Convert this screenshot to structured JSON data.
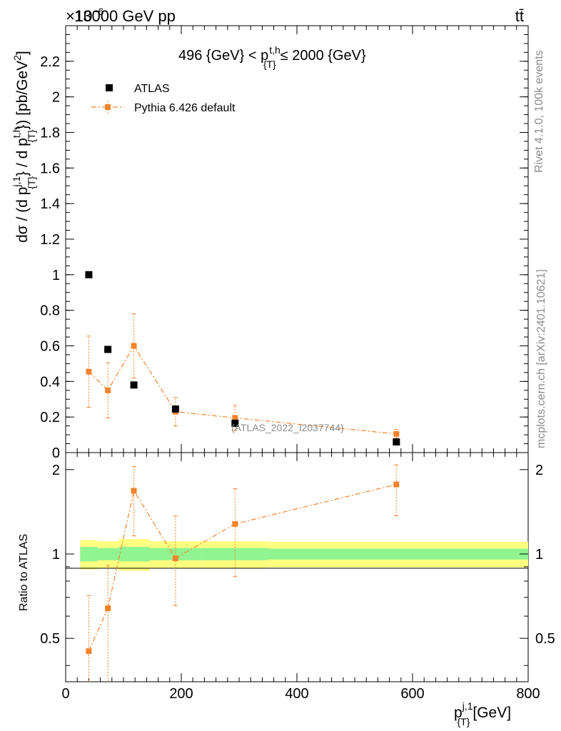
{
  "header": {
    "energy_label": "13000 GeV pp",
    "exponent_label": "×10",
    "exponent_power": "−6",
    "process_label": "tt̄"
  },
  "side_labels": {
    "rivet": "Rivet 4.1.0,  100k events",
    "mcplots": "mcplots.cern.ch [arXiv:2401.10621]"
  },
  "chart_data": {
    "type": "scatter",
    "title": "496 {GeV} < p_{T}^{t,h} ≤ 2000 {GeV}",
    "title_parts": {
      "left": "496 {GeV} < p",
      "sup": "t,h",
      "sub": "{T}",
      "right": "≤ 2000 {GeV}"
    },
    "analysis_label": "(ATLAS_2022_I2037744)",
    "xlabel": "p_{T}^{j,1} [GeV]",
    "xlabel_parts": {
      "main": "p",
      "sup": "j,1",
      "sub": "{T}",
      "unit": "[GeV]"
    },
    "ylabel": "dσ / (d p_{T}^{j,1} / d p_{T}^{t,h}) [pb/GeV^2]",
    "ylabel_parts": {
      "a": "dσ / (d p",
      "sup1": "j,1",
      "sub1": "{T}",
      "b": "} / d p",
      "sup2": "t,h",
      "sub2": "{T}",
      "c": "}) [pb/GeV",
      "sup3": "2",
      "d": "]"
    },
    "xlim": [
      0,
      800
    ],
    "ylim": [
      0,
      2.4
    ],
    "y_scale_note": "×10^-6",
    "xticks": [
      0,
      200,
      400,
      600,
      800
    ],
    "xtick_labels": [
      "0",
      "200",
      "400",
      "600",
      "800"
    ],
    "yticks": [
      0,
      0.2,
      0.4,
      0.6,
      0.8,
      1,
      1.2,
      1.4,
      1.6,
      1.8,
      2,
      2.2
    ],
    "ytick_labels": [
      "0",
      "0.2",
      "0.4",
      "0.6",
      "0.8",
      "1",
      "1.2",
      "1.4",
      "1.6",
      "1.8",
      "2",
      "2.2"
    ],
    "legend": {
      "position": "top-left",
      "entries": [
        "ATLAS",
        "Pythia 6.426 default"
      ]
    },
    "series": [
      {
        "name": "ATLAS",
        "color": "#000000",
        "marker": "square",
        "x": [
          40,
          73,
          118,
          190,
          293,
          572
        ],
        "y": [
          1.0,
          0.58,
          0.38,
          0.245,
          0.165,
          0.06
        ]
      },
      {
        "name": "Pythia 6.426 default",
        "color": "#f5832a",
        "marker": "square",
        "line": "dashdot",
        "x": [
          40,
          73,
          118,
          190,
          293,
          572
        ],
        "y": [
          0.455,
          0.35,
          0.6,
          0.23,
          0.195,
          0.105
        ],
        "yerr": [
          0.2,
          0.155,
          0.18,
          0.08,
          0.07,
          0.025
        ]
      }
    ],
    "ratio": {
      "ylabel": "Ratio to ATLAS",
      "ylim": [
        0.35,
        2.3
      ],
      "yticks": [
        0.5,
        1,
        2
      ],
      "ytick_labels": [
        "0.5",
        "1",
        "2"
      ],
      "x": [
        40,
        73,
        118,
        190,
        293,
        572
      ],
      "y": [
        0.45,
        0.64,
        1.68,
        0.965,
        1.28,
        1.77
      ],
      "yerr_up": [
        0.26,
        0.27,
        0.37,
        0.4,
        0.43,
        0.31
      ],
      "yerr_down": [
        0.16,
        0.3,
        0.52,
        0.31,
        0.45,
        0.4
      ],
      "bands": [
        {
          "x0": 25,
          "x1": 55,
          "green": [
            0.94,
            1.06
          ],
          "yellow": [
            0.88,
            1.12
          ]
        },
        {
          "x0": 55,
          "x1": 92,
          "green": [
            0.95,
            1.05
          ],
          "yellow": [
            0.89,
            1.11
          ]
        },
        {
          "x0": 92,
          "x1": 145,
          "green": [
            0.94,
            1.06
          ],
          "yellow": [
            0.87,
            1.13
          ]
        },
        {
          "x0": 145,
          "x1": 235,
          "green": [
            0.95,
            1.05
          ],
          "yellow": [
            0.89,
            1.11
          ]
        },
        {
          "x0": 235,
          "x1": 350,
          "green": [
            0.95,
            1.05
          ],
          "yellow": [
            0.89,
            1.11
          ]
        },
        {
          "x0": 350,
          "x1": 800,
          "green": [
            0.955,
            1.045
          ],
          "yellow": [
            0.895,
            1.105
          ]
        }
      ]
    }
  }
}
